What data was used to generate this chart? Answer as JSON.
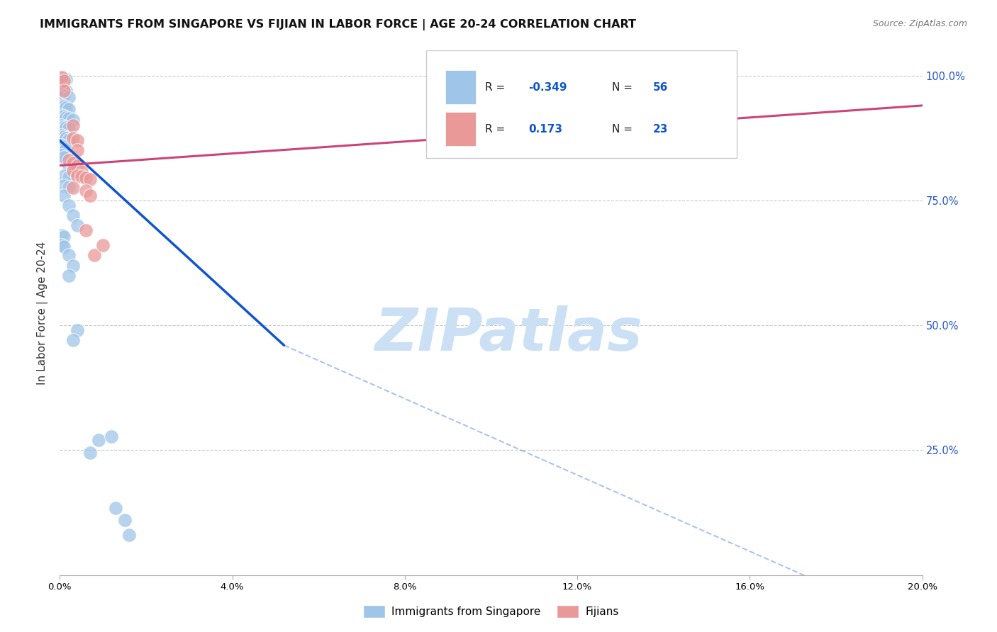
{
  "title": "IMMIGRANTS FROM SINGAPORE VS FIJIAN IN LABOR FORCE | AGE 20-24 CORRELATION CHART",
  "source": "Source: ZipAtlas.com",
  "ylabel_label": "In Labor Force | Age 20-24",
  "legend_blue_r": "-0.349",
  "legend_blue_n": "56",
  "legend_pink_r": "0.173",
  "legend_pink_n": "23",
  "watermark": "ZIPatlas",
  "blue_scatter": [
    [
      0.0005,
      0.995
    ],
    [
      0.001,
      0.995
    ],
    [
      0.0015,
      0.993
    ],
    [
      0.0005,
      0.975
    ],
    [
      0.001,
      0.972
    ],
    [
      0.0015,
      0.97
    ],
    [
      0.001,
      0.96
    ],
    [
      0.0005,
      0.955
    ],
    [
      0.002,
      0.957
    ],
    [
      0.0005,
      0.94
    ],
    [
      0.001,
      0.938
    ],
    [
      0.0015,
      0.935
    ],
    [
      0.002,
      0.933
    ],
    [
      0.0005,
      0.92
    ],
    [
      0.001,
      0.918
    ],
    [
      0.0015,
      0.916
    ],
    [
      0.002,
      0.914
    ],
    [
      0.003,
      0.912
    ],
    [
      0.0005,
      0.9
    ],
    [
      0.001,
      0.898
    ],
    [
      0.0015,
      0.896
    ],
    [
      0.002,
      0.894
    ],
    [
      0.0005,
      0.88
    ],
    [
      0.001,
      0.877
    ],
    [
      0.0015,
      0.874
    ],
    [
      0.002,
      0.872
    ],
    [
      0.0005,
      0.86
    ],
    [
      0.001,
      0.857
    ],
    [
      0.0015,
      0.854
    ],
    [
      0.0005,
      0.84
    ],
    [
      0.001,
      0.837
    ],
    [
      0.002,
      0.82
    ],
    [
      0.003,
      0.818
    ],
    [
      0.001,
      0.8
    ],
    [
      0.002,
      0.797
    ],
    [
      0.001,
      0.78
    ],
    [
      0.002,
      0.777
    ],
    [
      0.001,
      0.76
    ],
    [
      0.002,
      0.74
    ],
    [
      0.003,
      0.72
    ],
    [
      0.004,
      0.7
    ],
    [
      0.0005,
      0.68
    ],
    [
      0.001,
      0.677
    ],
    [
      0.0005,
      0.66
    ],
    [
      0.001,
      0.657
    ],
    [
      0.002,
      0.64
    ],
    [
      0.003,
      0.62
    ],
    [
      0.002,
      0.6
    ],
    [
      0.004,
      0.49
    ],
    [
      0.003,
      0.47
    ],
    [
      0.009,
      0.27
    ],
    [
      0.007,
      0.245
    ],
    [
      0.012,
      0.278
    ],
    [
      0.013,
      0.135
    ],
    [
      0.015,
      0.11
    ],
    [
      0.016,
      0.08
    ]
  ],
  "pink_scatter": [
    [
      0.0005,
      0.996
    ],
    [
      0.001,
      0.99
    ],
    [
      0.001,
      0.97
    ],
    [
      0.003,
      0.9
    ],
    [
      0.003,
      0.875
    ],
    [
      0.004,
      0.87
    ],
    [
      0.004,
      0.85
    ],
    [
      0.002,
      0.83
    ],
    [
      0.003,
      0.825
    ],
    [
      0.004,
      0.82
    ],
    [
      0.003,
      0.81
    ],
    [
      0.005,
      0.808
    ],
    [
      0.004,
      0.8
    ],
    [
      0.005,
      0.798
    ],
    [
      0.006,
      0.795
    ],
    [
      0.007,
      0.792
    ],
    [
      0.003,
      0.775
    ],
    [
      0.006,
      0.77
    ],
    [
      0.007,
      0.76
    ],
    [
      0.006,
      0.69
    ],
    [
      0.008,
      0.64
    ],
    [
      0.01,
      0.66
    ],
    [
      0.13,
      1.0
    ]
  ],
  "blue_line_solid": [
    [
      0.0,
      0.87
    ],
    [
      0.052,
      0.46
    ]
  ],
  "blue_line_dashed": [
    [
      0.052,
      0.46
    ],
    [
      0.2,
      -0.105
    ]
  ],
  "pink_line": [
    [
      0.0,
      0.82
    ],
    [
      0.2,
      0.94
    ]
  ],
  "blue_color": "#9fc5e8",
  "pink_color": "#ea9999",
  "trend_blue": "#1155cc",
  "trend_pink": "#cc4477",
  "background": "#ffffff",
  "grid_color": "#bbbbbb",
  "watermark_color": "#cce0f5",
  "xlim": [
    0,
    0.2
  ],
  "ylim": [
    0,
    1.05
  ],
  "xticks": [
    0,
    0.04,
    0.08,
    0.12,
    0.16,
    0.2
  ],
  "yticks_right": [
    1.0,
    0.75,
    0.5,
    0.25
  ]
}
